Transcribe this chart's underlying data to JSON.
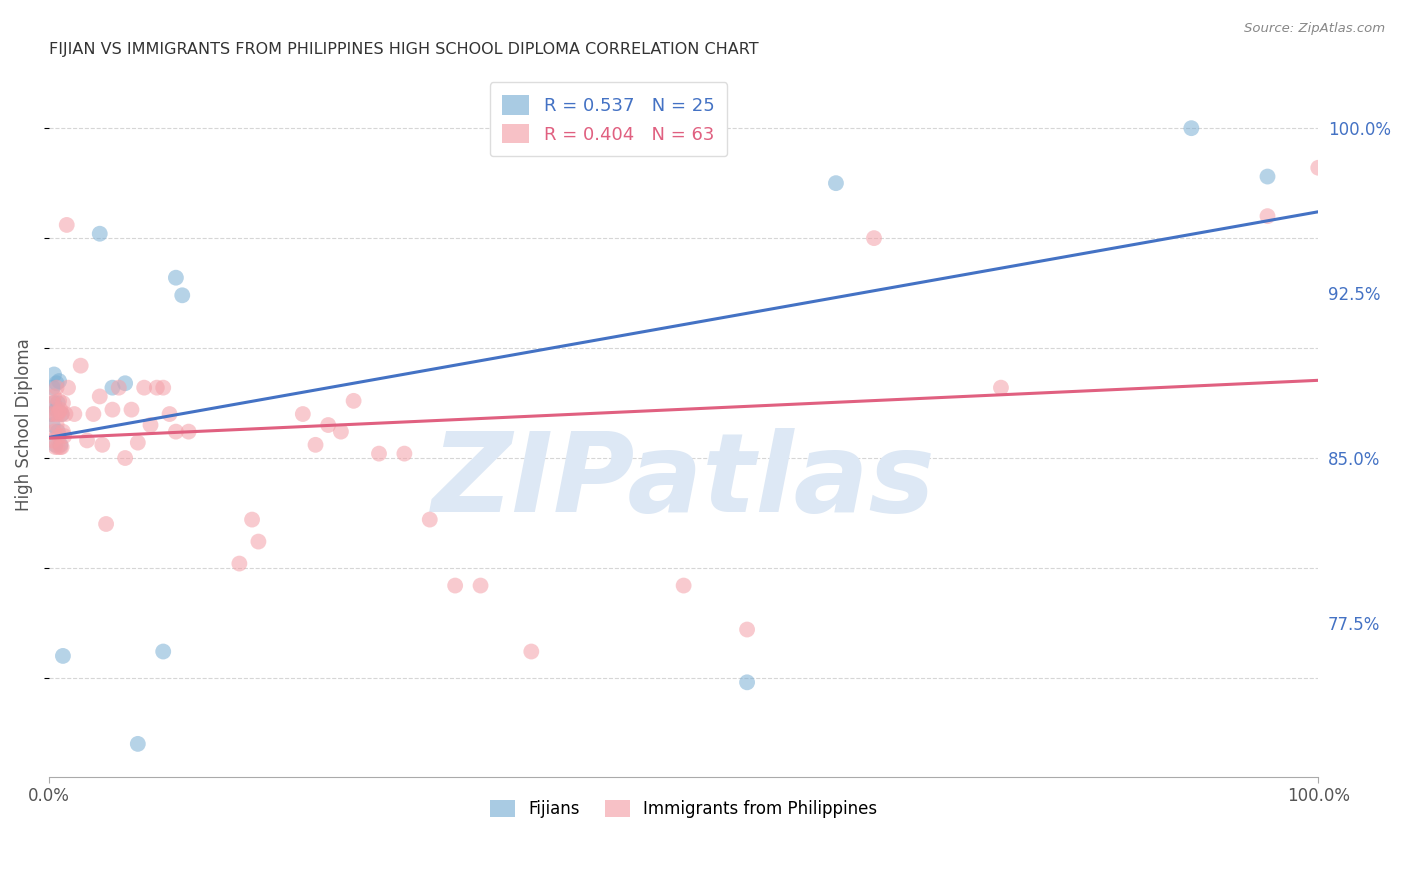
{
  "title": "FIJIAN VS IMMIGRANTS FROM PHILIPPINES HIGH SCHOOL DIPLOMA CORRELATION CHART",
  "source": "Source: ZipAtlas.com",
  "ylabel": "High School Diploma",
  "xlim": [
    0.0,
    1.0
  ],
  "ylim": [
    0.705,
    1.025
  ],
  "right_ytick_values": [
    0.775,
    0.85,
    0.925,
    1.0
  ],
  "right_ytick_labels": [
    "77.5%",
    "85.0%",
    "92.5%",
    "100.0%"
  ],
  "blue_color": "#7BAFD4",
  "pink_color": "#F4A0A8",
  "blue_line_color": "#4472C4",
  "pink_line_color": "#E06080",
  "legend_blue_R": "0.537",
  "legend_blue_N": "25",
  "legend_pink_R": "0.404",
  "legend_pink_N": "63",
  "legend_label_blue": "Fijians",
  "legend_label_pink": "Immigrants from Philippines",
  "watermark_color": "#DDE8F5",
  "grid_color": "#CCCCCC",
  "title_color": "#333333",
  "right_tick_color": "#4472C4",
  "fijians_x": [
    0.002,
    0.003,
    0.003,
    0.004,
    0.004,
    0.005,
    0.006,
    0.006,
    0.007,
    0.007,
    0.008,
    0.009,
    0.01,
    0.011,
    0.04,
    0.05,
    0.06,
    0.07,
    0.09,
    0.1,
    0.105,
    0.55,
    0.62,
    0.9,
    0.96
  ],
  "fijians_y": [
    0.87,
    0.865,
    0.882,
    0.888,
    0.875,
    0.856,
    0.872,
    0.884,
    0.862,
    0.875,
    0.885,
    0.856,
    0.87,
    0.76,
    0.952,
    0.882,
    0.884,
    0.72,
    0.762,
    0.932,
    0.924,
    0.748,
    0.975,
    1.0,
    0.978
  ],
  "phil_x": [
    0.002,
    0.003,
    0.003,
    0.004,
    0.004,
    0.005,
    0.005,
    0.006,
    0.006,
    0.007,
    0.007,
    0.008,
    0.008,
    0.008,
    0.009,
    0.009,
    0.01,
    0.01,
    0.011,
    0.011,
    0.012,
    0.013,
    0.014,
    0.015,
    0.02,
    0.025,
    0.03,
    0.035,
    0.04,
    0.042,
    0.045,
    0.05,
    0.055,
    0.06,
    0.065,
    0.07,
    0.075,
    0.08,
    0.085,
    0.09,
    0.095,
    0.1,
    0.11,
    0.15,
    0.16,
    0.165,
    0.2,
    0.21,
    0.22,
    0.23,
    0.24,
    0.26,
    0.28,
    0.3,
    0.32,
    0.34,
    0.38,
    0.5,
    0.55,
    0.65,
    0.75,
    0.96,
    1.0
  ],
  "phil_y": [
    0.87,
    0.858,
    0.875,
    0.862,
    0.878,
    0.87,
    0.855,
    0.865,
    0.882,
    0.87,
    0.855,
    0.876,
    0.86,
    0.871,
    0.872,
    0.855,
    0.87,
    0.855,
    0.862,
    0.875,
    0.86,
    0.87,
    0.956,
    0.882,
    0.87,
    0.892,
    0.858,
    0.87,
    0.878,
    0.856,
    0.82,
    0.872,
    0.882,
    0.85,
    0.872,
    0.857,
    0.882,
    0.865,
    0.882,
    0.882,
    0.87,
    0.862,
    0.862,
    0.802,
    0.822,
    0.812,
    0.87,
    0.856,
    0.865,
    0.862,
    0.876,
    0.852,
    0.852,
    0.822,
    0.792,
    0.792,
    0.762,
    0.792,
    0.772,
    0.95,
    0.882,
    0.96,
    0.982
  ]
}
